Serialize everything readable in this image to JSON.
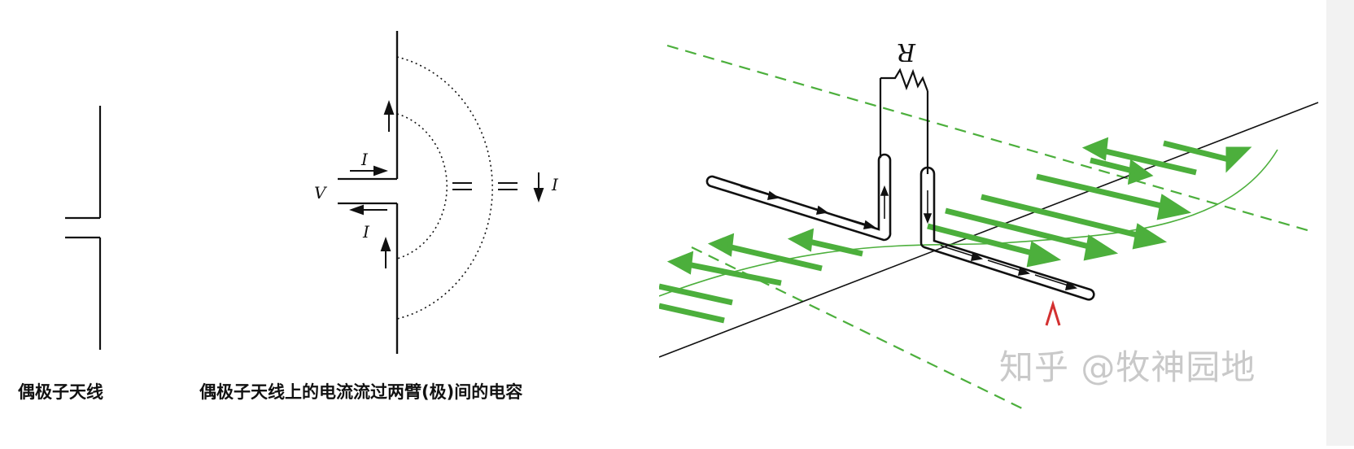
{
  "figure_left": {
    "caption": "偶极子天线",
    "caption_right": "偶极子天线上的电流流过两臂(极)间的电容",
    "labels": {
      "current_top": "I",
      "current_bottom": "I",
      "voltage": "V",
      "current_field": "I"
    }
  },
  "figure_right": {
    "resistor_label": "R",
    "watermark": "知乎 @牧神园地"
  },
  "colors": {
    "wave": "#4caf3c",
    "line": "#111111",
    "watermark": "#c9c9c9",
    "marker": "#d33030"
  }
}
